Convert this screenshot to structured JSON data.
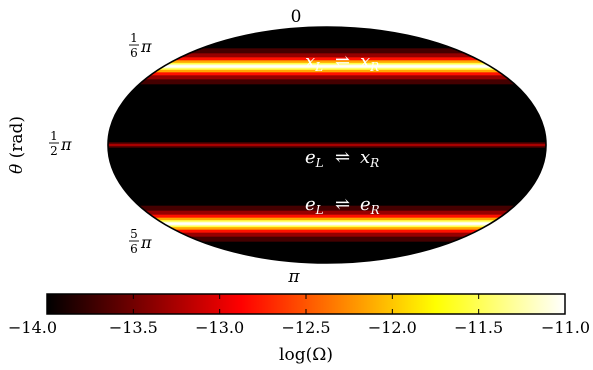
{
  "chart_data": {
    "type": "heatmap",
    "projection": "mollweide",
    "y_axis": {
      "label": "θ (rad)",
      "ticks": [
        {
          "value_rad": 0,
          "label": "0"
        },
        {
          "value_rad": 0.5236,
          "label": "1/6 π"
        },
        {
          "value_rad": 1.5708,
          "label": "1/2 π"
        },
        {
          "value_rad": 2.618,
          "label": "5/6 π"
        },
        {
          "value_rad": 3.1416,
          "label": "π"
        }
      ]
    },
    "bands": [
      {
        "label": "x_L ⇌ x_R",
        "theta_rad": 0.5236,
        "peak_log_omega": -11.0
      },
      {
        "label": "e_L ⇌ x_R",
        "theta_rad": 1.5708,
        "peak_log_omega": -13.2
      },
      {
        "label": "e_L ⇌ e_R",
        "theta_rad": 2.618,
        "peak_log_omega": -11.0
      }
    ],
    "background_log_omega": -14.0,
    "colorbar": {
      "label": "log(Ω)",
      "colormap": "hot",
      "range": [
        -14.0,
        -11.0
      ],
      "ticks": [
        "−14.0",
        "−13.5",
        "−13.0",
        "−12.5",
        "−12.0",
        "−11.5",
        "−11.0"
      ]
    },
    "grid": false,
    "colors": {
      "background": "#ffffff",
      "ellipse_outline": "#000000",
      "annotation_text": "#ffffff"
    }
  }
}
